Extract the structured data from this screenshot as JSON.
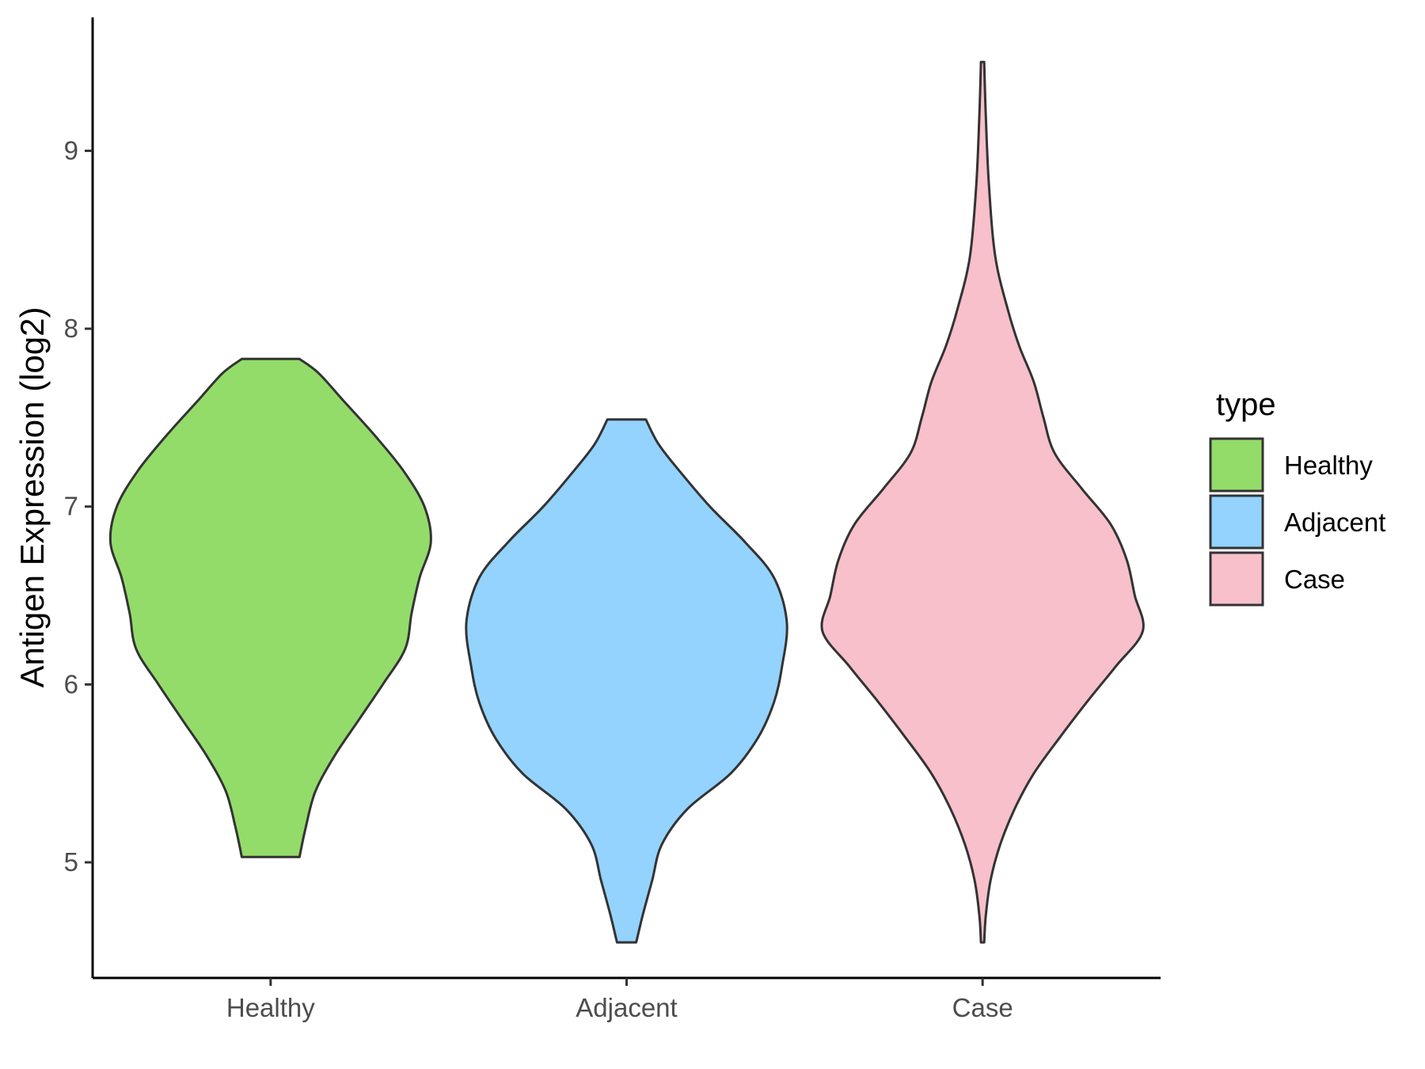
{
  "chart_data": {
    "type": "violin",
    "title": "",
    "xlabel": "",
    "ylabel": "Antigen Expression (log2)",
    "ylim": [
      4.35,
      9.75
    ],
    "y_ticks": [
      5,
      6,
      7,
      8,
      9
    ],
    "categories": [
      "Healthy",
      "Adjacent",
      "Case"
    ],
    "grid": false,
    "legend": {
      "title": "type",
      "position": "right",
      "entries": [
        "Healthy",
        "Adjacent",
        "Case"
      ]
    },
    "series": [
      {
        "name": "Healthy",
        "color": "#93dc6a",
        "min": 5.03,
        "max": 7.83,
        "density": [
          [
            5.03,
            0.18
          ],
          [
            5.2,
            0.22
          ],
          [
            5.4,
            0.28
          ],
          [
            5.6,
            0.4
          ],
          [
            5.8,
            0.55
          ],
          [
            6.0,
            0.7
          ],
          [
            6.2,
            0.84
          ],
          [
            6.4,
            0.88
          ],
          [
            6.6,
            0.93
          ],
          [
            6.8,
            1.0
          ],
          [
            7.0,
            0.96
          ],
          [
            7.2,
            0.83
          ],
          [
            7.4,
            0.65
          ],
          [
            7.6,
            0.45
          ],
          [
            7.75,
            0.3
          ],
          [
            7.83,
            0.18
          ]
        ]
      },
      {
        "name": "Adjacent",
        "color": "#93d3fd",
        "min": 4.55,
        "max": 7.49,
        "density": [
          [
            4.55,
            0.06
          ],
          [
            4.7,
            0.1
          ],
          [
            4.9,
            0.16
          ],
          [
            5.1,
            0.22
          ],
          [
            5.3,
            0.38
          ],
          [
            5.5,
            0.65
          ],
          [
            5.7,
            0.82
          ],
          [
            5.9,
            0.92
          ],
          [
            6.1,
            0.97
          ],
          [
            6.35,
            1.0
          ],
          [
            6.6,
            0.92
          ],
          [
            6.8,
            0.74
          ],
          [
            7.0,
            0.52
          ],
          [
            7.2,
            0.33
          ],
          [
            7.35,
            0.2
          ],
          [
            7.49,
            0.12
          ]
        ]
      },
      {
        "name": "Case",
        "color": "#f7c0cb",
        "min": 4.55,
        "max": 9.5,
        "density": [
          [
            4.55,
            0.01
          ],
          [
            4.7,
            0.02
          ],
          [
            4.9,
            0.05
          ],
          [
            5.1,
            0.11
          ],
          [
            5.3,
            0.2
          ],
          [
            5.5,
            0.32
          ],
          [
            5.7,
            0.48
          ],
          [
            5.9,
            0.65
          ],
          [
            6.1,
            0.83
          ],
          [
            6.3,
            1.0
          ],
          [
            6.5,
            0.95
          ],
          [
            6.7,
            0.9
          ],
          [
            6.9,
            0.8
          ],
          [
            7.1,
            0.62
          ],
          [
            7.3,
            0.45
          ],
          [
            7.5,
            0.38
          ],
          [
            7.7,
            0.32
          ],
          [
            7.9,
            0.23
          ],
          [
            8.1,
            0.16
          ],
          [
            8.4,
            0.08
          ],
          [
            8.8,
            0.04
          ],
          [
            9.2,
            0.02
          ],
          [
            9.5,
            0.01
          ]
        ]
      }
    ]
  }
}
